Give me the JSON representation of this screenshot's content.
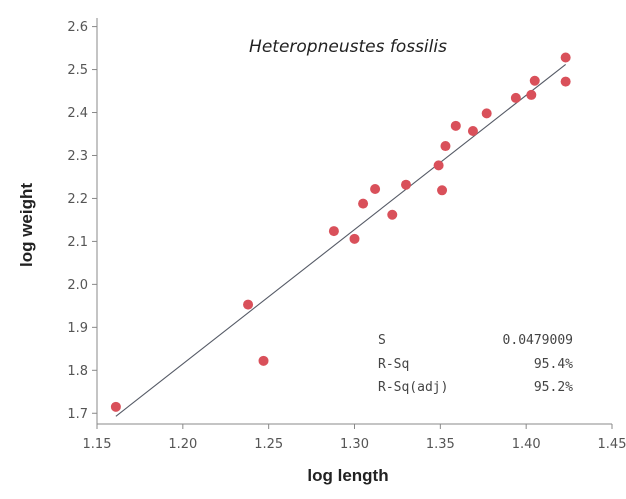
{
  "chart_data": {
    "type": "scatter",
    "title": "Heteropneustes fossilis",
    "xlabel": "log length",
    "ylabel": "log weight",
    "xlim": [
      1.15,
      1.45
    ],
    "ylim": [
      1.675,
      2.62
    ],
    "x_ticks": [
      "1.15",
      "1.20",
      "1.25",
      "1.30",
      "1.35",
      "1.40",
      "1.45"
    ],
    "y_ticks": [
      "1.7",
      "1.8",
      "1.9",
      "2.0",
      "2.1",
      "2.2",
      "2.3",
      "2.4",
      "2.5",
      "2.6"
    ],
    "grid": false,
    "point_color": "#d9505a",
    "line_color": "#555a66",
    "points": [
      {
        "x": 1.161,
        "y": 1.715
      },
      {
        "x": 1.238,
        "y": 1.953
      },
      {
        "x": 1.247,
        "y": 1.822
      },
      {
        "x": 1.288,
        "y": 2.124
      },
      {
        "x": 1.3,
        "y": 2.106
      },
      {
        "x": 1.305,
        "y": 2.188
      },
      {
        "x": 1.312,
        "y": 2.222
      },
      {
        "x": 1.322,
        "y": 2.162
      },
      {
        "x": 1.33,
        "y": 2.232
      },
      {
        "x": 1.349,
        "y": 2.277
      },
      {
        "x": 1.351,
        "y": 2.219
      },
      {
        "x": 1.353,
        "y": 2.322
      },
      {
        "x": 1.359,
        "y": 2.369
      },
      {
        "x": 1.369,
        "y": 2.357
      },
      {
        "x": 1.377,
        "y": 2.398
      },
      {
        "x": 1.394,
        "y": 2.434
      },
      {
        "x": 1.403,
        "y": 2.441
      },
      {
        "x": 1.405,
        "y": 2.474
      },
      {
        "x": 1.423,
        "y": 2.472
      },
      {
        "x": 1.423,
        "y": 2.528
      }
    ],
    "fit_line": {
      "x": [
        1.161,
        1.423
      ],
      "y": [
        1.693,
        2.512
      ]
    },
    "stats": [
      {
        "label": "S",
        "value": "0.0479009"
      },
      {
        "label": "R-Sq",
        "value": "95.4%"
      },
      {
        "label": "R-Sq(adj)",
        "value": "95.2%"
      }
    ]
  }
}
